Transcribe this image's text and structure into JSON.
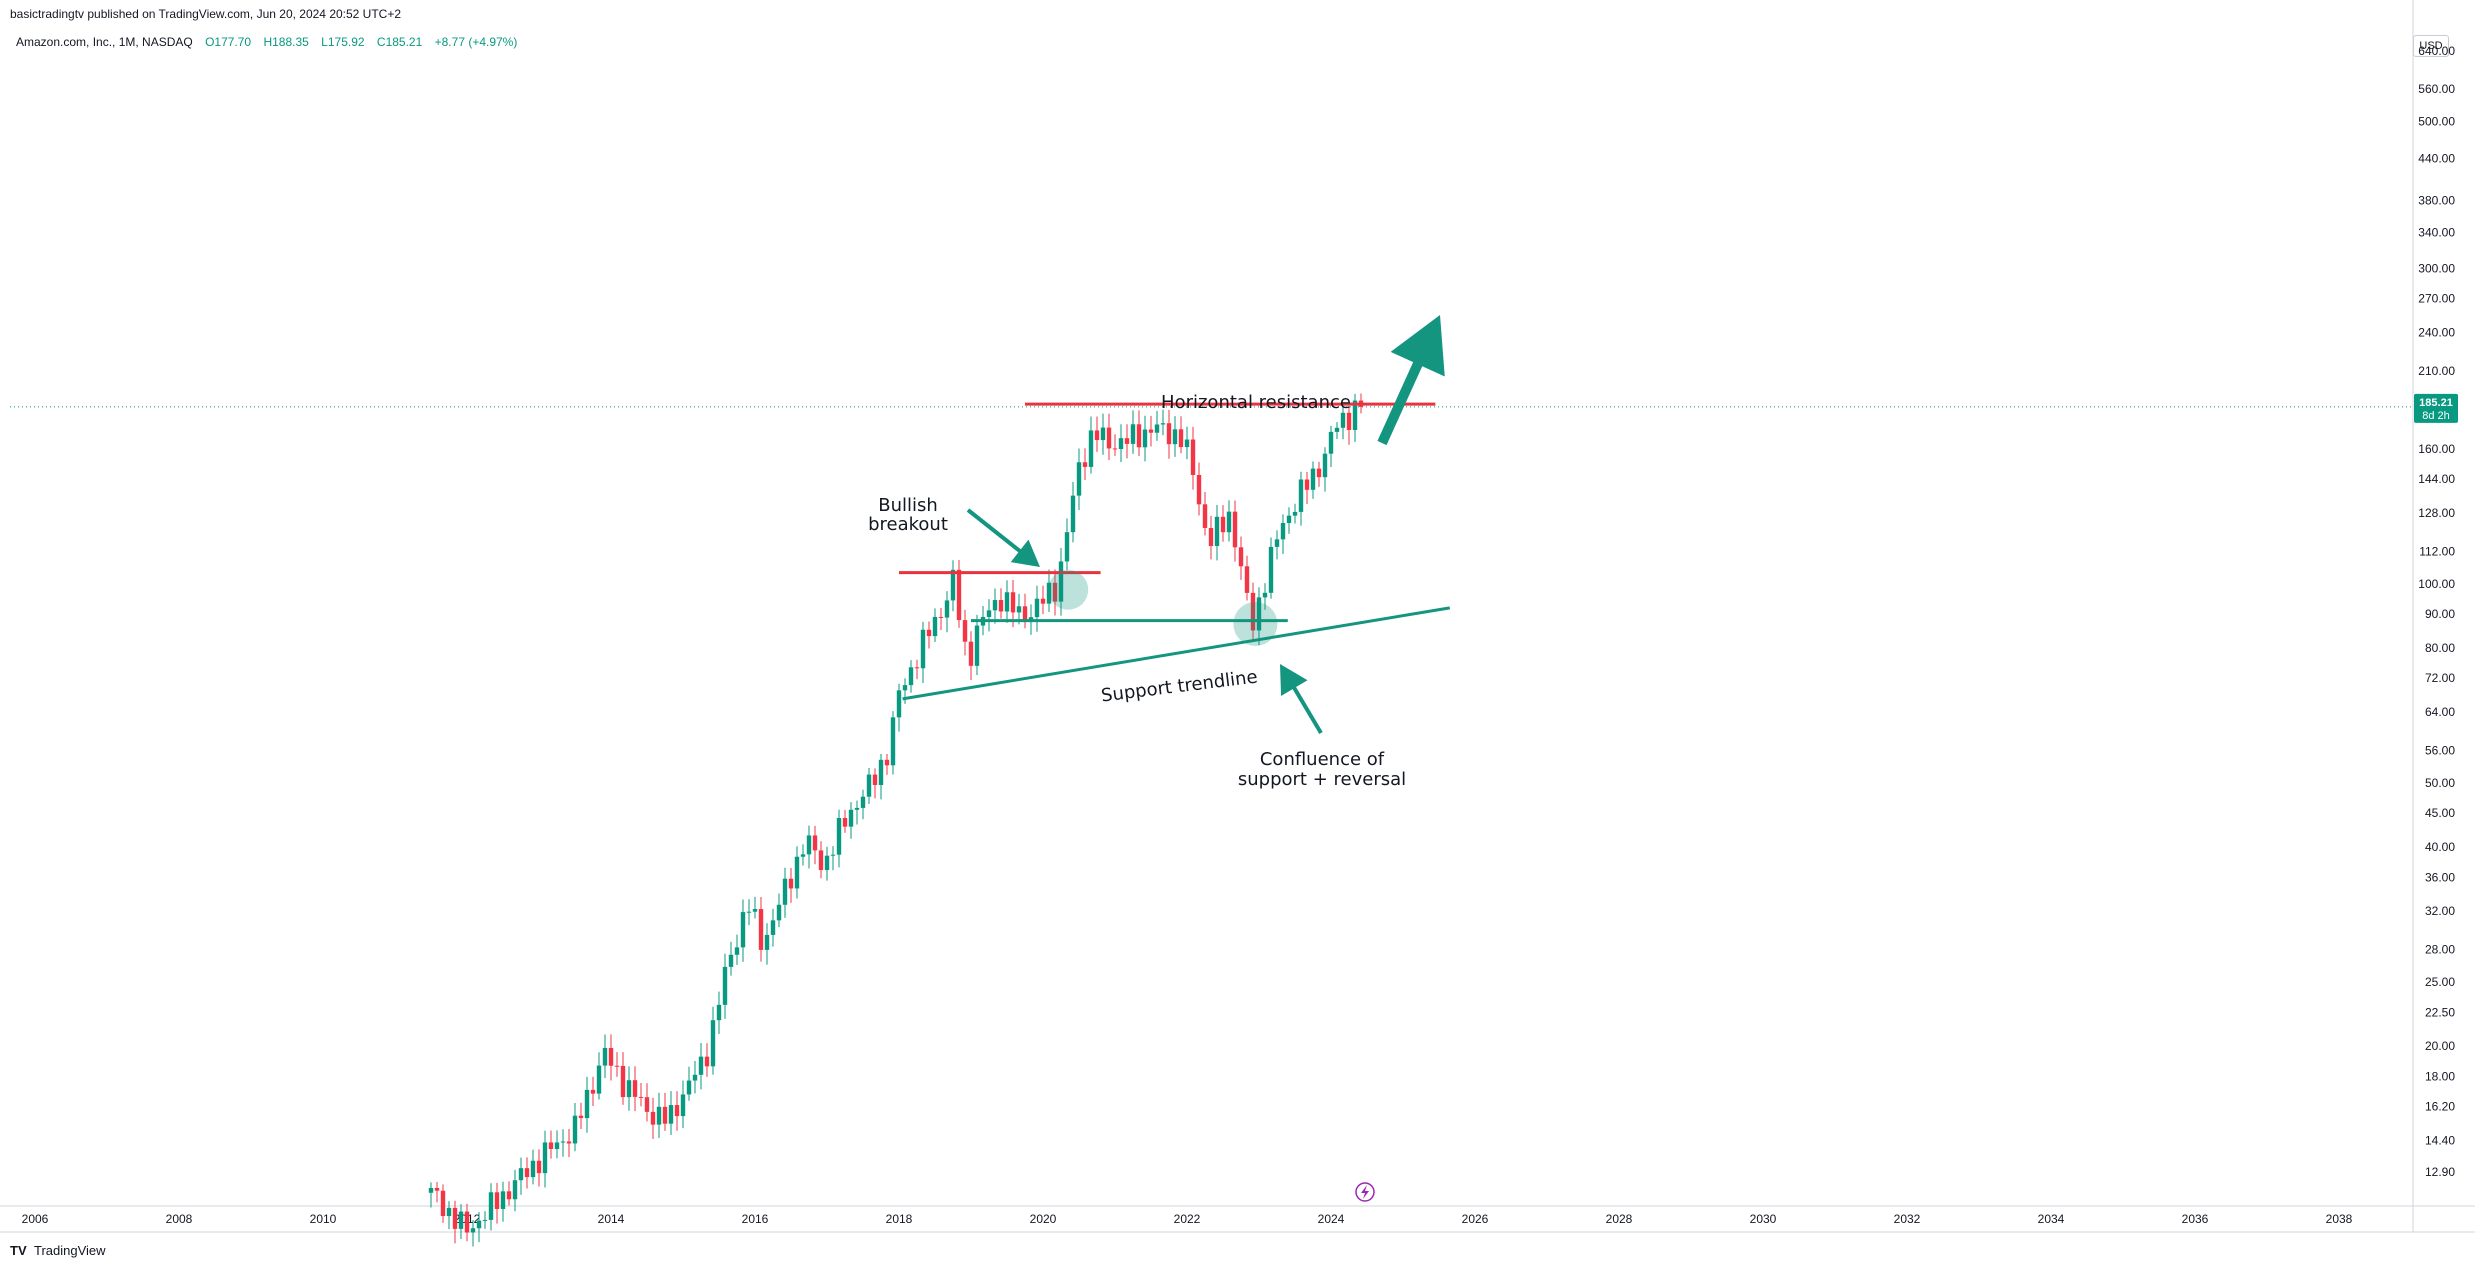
{
  "header": {
    "published": "basictradingtv published on TradingView.com, Jun 20, 2024 20:52 UTC+2",
    "symbol": "Amazon.com, Inc., 1M, NASDAQ",
    "open": "O177.70",
    "high": "H188.35",
    "low": "L175.92",
    "close": "C185.21",
    "change": "+8.77 (+4.97%)"
  },
  "currency_button": "USD",
  "price_badge": {
    "price": "185.21",
    "countdown": "8d 2h"
  },
  "footer": {
    "logo": "TV",
    "brand": "TradingView"
  },
  "colors": {
    "up": "#089981",
    "down": "#f23645",
    "annotation_green": "#13957f",
    "resistance": "#e8333f"
  },
  "chart_data": {
    "type": "candlestick",
    "title": "Amazon.com, Inc., 1M, NASDAQ",
    "scale": "log",
    "ylim": [
      11.5,
      660
    ],
    "xlim": [
      2006,
      2039.5
    ],
    "x_ticks": [
      "2006",
      "2008",
      "2010",
      "2012",
      "2014",
      "2016",
      "2018",
      "2020",
      "2022",
      "2024",
      "2026",
      "2028",
      "2030",
      "2032",
      "2034",
      "2036",
      "2038"
    ],
    "y_ticks": [
      "640.00",
      "560.00",
      "500.00",
      "440.00",
      "380.00",
      "340.00",
      "300.00",
      "270.00",
      "240.00",
      "210.00",
      "160.00",
      "144.00",
      "128.00",
      "112.00",
      "100.00",
      "90.00",
      "80.00",
      "72.00",
      "64.00",
      "56.00",
      "50.00",
      "45.00",
      "40.00",
      "36.00",
      "32.00",
      "28.00",
      "25.00",
      "22.50",
      "20.00",
      "18.00",
      "16.20",
      "14.40",
      "12.90"
    ],
    "current_price": 185.21,
    "price_path": [
      [
        2011.5,
        12.0
      ],
      [
        2012.0,
        10.5
      ],
      [
        2012.6,
        12.2
      ],
      [
        2013.0,
        13.5
      ],
      [
        2013.5,
        15.0
      ],
      [
        2013.9,
        19.5
      ],
      [
        2014.2,
        17.5
      ],
      [
        2014.5,
        16.0
      ],
      [
        2014.8,
        15.4
      ],
      [
        2015.0,
        17.0
      ],
      [
        2015.3,
        19.0
      ],
      [
        2015.6,
        26.0
      ],
      [
        2015.9,
        33.0
      ],
      [
        2016.1,
        28.5
      ],
      [
        2016.4,
        34.0
      ],
      [
        2016.7,
        41.0
      ],
      [
        2016.95,
        37.5
      ],
      [
        2017.3,
        45.0
      ],
      [
        2017.6,
        49.5
      ],
      [
        2017.85,
        56.0
      ],
      [
        2018.0,
        68.0
      ],
      [
        2018.3,
        80.0
      ],
      [
        2018.6,
        92.0
      ],
      [
        2018.75,
        101.0
      ],
      [
        2018.95,
        76.0
      ],
      [
        2019.1,
        86.0
      ],
      [
        2019.4,
        96.0
      ],
      [
        2019.7,
        89.0
      ],
      [
        2019.95,
        93.0
      ],
      [
        2020.2,
        100.0
      ],
      [
        2020.5,
        150.0
      ],
      [
        2020.7,
        170.0
      ],
      [
        2020.9,
        163.0
      ],
      [
        2021.2,
        165.0
      ],
      [
        2021.5,
        172.0
      ],
      [
        2021.9,
        168.0
      ],
      [
        2022.05,
        153.0
      ],
      [
        2022.3,
        115.0
      ],
      [
        2022.6,
        128.0
      ],
      [
        2022.9,
        86.0
      ],
      [
        2023.1,
        103.0
      ],
      [
        2023.3,
        122.0
      ],
      [
        2023.6,
        138.0
      ],
      [
        2023.9,
        155.0
      ],
      [
        2024.1,
        176.0
      ],
      [
        2024.4,
        185.21
      ]
    ],
    "levels": [
      {
        "name": "Horizontal resistance",
        "price": 187.0,
        "x": [
          2019.75,
          2025.45
        ]
      },
      {
        "name": "breakout resistance",
        "price": 104.0,
        "x": [
          2018.0,
          2020.8
        ]
      },
      {
        "name": "support line",
        "price": 88.0,
        "x": [
          2019.0,
          2023.4
        ]
      }
    ],
    "support_trendline": {
      "from": [
        2018.05,
        67.0
      ],
      "to": [
        2025.65,
        92.0
      ]
    },
    "annotations": {
      "resistance_label": "Horizontal resistance",
      "breakout_line1": "Bullish",
      "breakout_line2": "breakout",
      "trendline_label": "Support trendline",
      "confluence_line1": "Confluence of",
      "confluence_line2": "support + reversal"
    }
  }
}
